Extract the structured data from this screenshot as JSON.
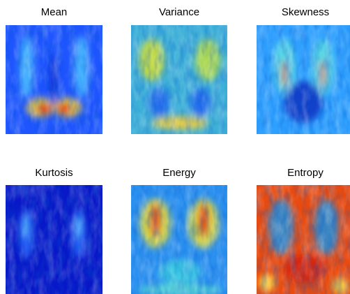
{
  "panels": [
    {
      "title": "Mean"
    },
    {
      "title": "Variance"
    },
    {
      "title": "Skewness"
    },
    {
      "title": "Kurtosis"
    },
    {
      "title": "Energy"
    },
    {
      "title": "Entropy"
    }
  ]
}
